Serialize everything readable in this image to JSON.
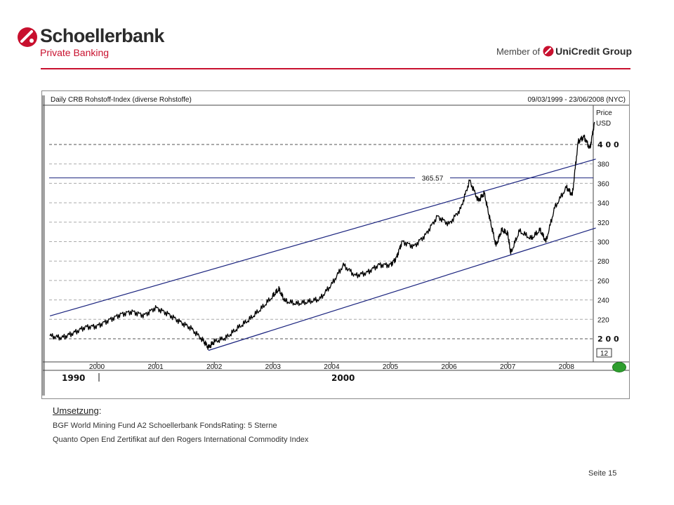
{
  "header": {
    "brand_name": "Schoellerbank",
    "brand_sub": "Private Banking",
    "member_prefix": "Member of",
    "member_brand": "UniCredit Group",
    "colors": {
      "accent": "#c8102e",
      "text": "#2b2b2b"
    }
  },
  "chart": {
    "title_left": "Daily CRB Rohstoff-Index (diverse Rohstoffe)",
    "title_right": "09/03/1999 - 23/06/2008 (NYC)",
    "price_label": "Price",
    "currency_label": "USD",
    "marker_value_label": "365.57",
    "marker_box_label": "12",
    "decade_labels": [
      "1990",
      "2000"
    ]
  },
  "chart_data": {
    "type": "line",
    "title": "Daily CRB Rohstoff-Index (diverse Rohstoffe)",
    "date_range": "09/03/1999 - 23/06/2008 (NYC)",
    "ylabel": "Price USD",
    "ylim": [
      180,
      430
    ],
    "yticks": [
      200,
      220,
      240,
      260,
      280,
      300,
      320,
      340,
      360,
      380,
      400
    ],
    "yticks_major": [
      200,
      400
    ],
    "xticks": [
      "2000",
      "2001",
      "2002",
      "2003",
      "2004",
      "2005",
      "2006",
      "2007",
      "2008"
    ],
    "grid": true,
    "horizontal_line": {
      "value": 365.57,
      "label": "365.57"
    },
    "series": [
      {
        "x": [
          1999.2,
          1999.4,
          1999.6,
          1999.8,
          2000.0,
          2000.2,
          2000.4,
          2000.6,
          2000.8,
          2001.0,
          2001.2,
          2001.4,
          2001.6,
          2001.8,
          2001.9,
          2002.0,
          2002.2,
          2002.4,
          2002.6,
          2002.8,
          2003.0,
          2003.1,
          2003.2,
          2003.4,
          2003.6,
          2003.8,
          2004.0,
          2004.2,
          2004.4,
          2004.6,
          2004.8,
          2005.0,
          2005.1,
          2005.2,
          2005.4,
          2005.6,
          2005.8,
          2006.0,
          2006.2,
          2006.35,
          2006.5,
          2006.6,
          2006.7,
          2006.8,
          2006.9,
          2007.0,
          2007.05,
          2007.2,
          2007.4,
          2007.55,
          2007.65,
          2007.8,
          2008.0,
          2008.1,
          2008.2,
          2008.3,
          2008.4,
          2008.48
        ],
        "values": [
          203,
          201,
          206,
          212,
          213,
          219,
          225,
          228,
          224,
          232,
          226,
          218,
          211,
          199,
          191,
          197,
          201,
          211,
          220,
          231,
          244,
          251,
          239,
          236,
          238,
          241,
          256,
          276,
          265,
          268,
          276,
          276,
          283,
          300,
          295,
          307,
          326,
          318,
          334,
          363,
          342,
          350,
          322,
          296,
          312,
          308,
          288,
          311,
          303,
          312,
          300,
          335,
          356,
          348,
          403,
          408,
          396,
          423
        ]
      }
    ],
    "trend_channel": {
      "upper": {
        "x": [
          1999.2,
          2008.5
        ],
        "values": [
          223.5,
          385
        ]
      },
      "lower": {
        "x": [
          2001.9,
          2008.5
        ],
        "values": [
          188,
          314
        ]
      }
    }
  },
  "body": {
    "section_title": "Umsetzung",
    "section_title_suffix": ":",
    "items": [
      "BGF World Mining Fund A2 Schoellerbank FondsRating: 5 Sterne",
      "Quanto Open End Zertifikat auf den Rogers International Commodity Index"
    ]
  },
  "footer": {
    "page_label": "Seite 15"
  },
  "icons": {
    "brand_mark": "schoellerbank-logo-icon",
    "partner_mark": "unicredit-logo-icon",
    "status": "status-dot-icon"
  }
}
